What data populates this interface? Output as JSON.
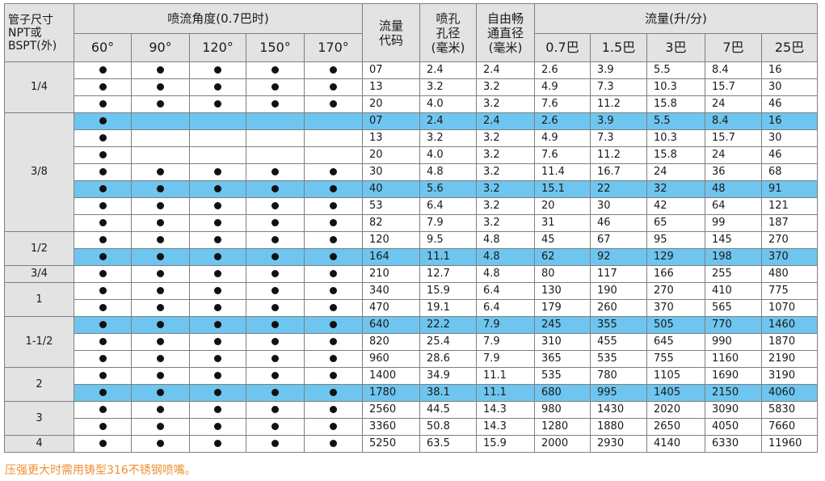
{
  "header": {
    "pipe_size": [
      "管子尺寸",
      "NPT或",
      "BSPT(外)"
    ],
    "spray_angle_title": "喷流角度(0.7巴时)",
    "angles": [
      "60°",
      "90°",
      "120°",
      "150°",
      "170°"
    ],
    "flow_code": [
      "流量",
      "代码"
    ],
    "orifice": [
      "喷孔",
      "孔径",
      "(毫米)"
    ],
    "free_passage": [
      "自由畅",
      "通直径",
      "(毫米)"
    ],
    "flow_title": "流量(升/分)",
    "pressures": [
      "0.7巴",
      "1.5巴",
      "3巴",
      "7巴",
      "25巴"
    ]
  },
  "dot_symbol": "●",
  "highlight_color": "#6ec5ef",
  "note_color": "#f08f33",
  "groups": [
    {
      "size": "1/4",
      "rows": [
        {
          "angles": [
            1,
            1,
            1,
            1,
            1
          ],
          "code": "07",
          "orifice": "2.4",
          "passage": "2.4",
          "flows": [
            "2.6",
            "3.9",
            "5.5",
            "8.4",
            "16"
          ],
          "hl": false
        },
        {
          "angles": [
            1,
            1,
            1,
            1,
            1
          ],
          "code": "13",
          "orifice": "3.2",
          "passage": "3.2",
          "flows": [
            "4.9",
            "7.3",
            "10.3",
            "15.7",
            "30"
          ],
          "hl": false
        },
        {
          "angles": [
            1,
            1,
            1,
            1,
            1
          ],
          "code": "20",
          "orifice": "4.0",
          "passage": "3.2",
          "flows": [
            "7.6",
            "11.2",
            "15.8",
            "24",
            "46"
          ],
          "hl": false
        }
      ]
    },
    {
      "size": "3/8",
      "rows": [
        {
          "angles": [
            1,
            0,
            0,
            0,
            0
          ],
          "code": "07",
          "orifice": "2.4",
          "passage": "2.4",
          "flows": [
            "2.6",
            "3.9",
            "5.5",
            "8.4",
            "16"
          ],
          "hl": true
        },
        {
          "angles": [
            1,
            0,
            0,
            0,
            0
          ],
          "code": "13",
          "orifice": "3.2",
          "passage": "3.2",
          "flows": [
            "4.9",
            "7.3",
            "10.3",
            "15.7",
            "30"
          ],
          "hl": false
        },
        {
          "angles": [
            1,
            0,
            0,
            0,
            0
          ],
          "code": "20",
          "orifice": "4.0",
          "passage": "3.2",
          "flows": [
            "7.6",
            "11.2",
            "15.8",
            "24",
            "46"
          ],
          "hl": false
        },
        {
          "angles": [
            1,
            1,
            1,
            1,
            1
          ],
          "code": "30",
          "orifice": "4.8",
          "passage": "3.2",
          "flows": [
            "11.4",
            "16.7",
            "24",
            "36",
            "68"
          ],
          "hl": false
        },
        {
          "angles": [
            1,
            1,
            1,
            1,
            1
          ],
          "code": "40",
          "orifice": "5.6",
          "passage": "3.2",
          "flows": [
            "15.1",
            "22",
            "32",
            "48",
            "91"
          ],
          "hl": true
        },
        {
          "angles": [
            1,
            1,
            1,
            1,
            1
          ],
          "code": "53",
          "orifice": "6.4",
          "passage": "3.2",
          "flows": [
            "20",
            "30",
            "42",
            "64",
            "121"
          ],
          "hl": false
        },
        {
          "angles": [
            1,
            1,
            1,
            1,
            1
          ],
          "code": "82",
          "orifice": "7.9",
          "passage": "3.2",
          "flows": [
            "31",
            "46",
            "65",
            "99",
            "187"
          ],
          "hl": false
        }
      ]
    },
    {
      "size": "1/2",
      "rows": [
        {
          "angles": [
            1,
            1,
            1,
            1,
            1
          ],
          "code": "120",
          "orifice": "9.5",
          "passage": "4.8",
          "flows": [
            "45",
            "67",
            "95",
            "145",
            "270"
          ],
          "hl": false
        },
        {
          "angles": [
            1,
            1,
            1,
            1,
            1
          ],
          "code": "164",
          "orifice": "11.1",
          "passage": "4.8",
          "flows": [
            "62",
            "92",
            "129",
            "198",
            "370"
          ],
          "hl": true
        }
      ]
    },
    {
      "size": "3/4",
      "rows": [
        {
          "angles": [
            1,
            1,
            1,
            1,
            1
          ],
          "code": "210",
          "orifice": "12.7",
          "passage": "4.8",
          "flows": [
            "80",
            "117",
            "166",
            "255",
            "480"
          ],
          "hl": false
        }
      ]
    },
    {
      "size": "1",
      "rows": [
        {
          "angles": [
            1,
            1,
            1,
            1,
            1
          ],
          "code": "340",
          "orifice": "15.9",
          "passage": "6.4",
          "flows": [
            "130",
            "190",
            "270",
            "410",
            "775"
          ],
          "hl": false
        },
        {
          "angles": [
            1,
            1,
            1,
            1,
            1
          ],
          "code": "470",
          "orifice": "19.1",
          "passage": "6.4",
          "flows": [
            "179",
            "260",
            "370",
            "565",
            "1070"
          ],
          "hl": false
        }
      ]
    },
    {
      "size": "1-1/2",
      "rows": [
        {
          "angles": [
            1,
            1,
            1,
            1,
            1
          ],
          "code": "640",
          "orifice": "22.2",
          "passage": "7.9",
          "flows": [
            "245",
            "355",
            "505",
            "770",
            "1460"
          ],
          "hl": true
        },
        {
          "angles": [
            1,
            1,
            1,
            1,
            1
          ],
          "code": "820",
          "orifice": "25.4",
          "passage": "7.9",
          "flows": [
            "310",
            "455",
            "645",
            "990",
            "1870"
          ],
          "hl": false
        },
        {
          "angles": [
            1,
            1,
            1,
            1,
            1
          ],
          "code": "960",
          "orifice": "28.6",
          "passage": "7.9",
          "flows": [
            "365",
            "535",
            "755",
            "1160",
            "2190"
          ],
          "hl": false
        }
      ]
    },
    {
      "size": "2",
      "rows": [
        {
          "angles": [
            1,
            1,
            1,
            1,
            1
          ],
          "code": "1400",
          "orifice": "34.9",
          "passage": "11.1",
          "flows": [
            "535",
            "780",
            "1105",
            "1690",
            "3190"
          ],
          "hl": false
        },
        {
          "angles": [
            1,
            1,
            1,
            1,
            1
          ],
          "code": "1780",
          "orifice": "38.1",
          "passage": "11.1",
          "flows": [
            "680",
            "995",
            "1405",
            "2150",
            "4060"
          ],
          "hl": true
        }
      ]
    },
    {
      "size": "3",
      "rows": [
        {
          "angles": [
            1,
            1,
            1,
            1,
            1
          ],
          "code": "2560",
          "orifice": "44.5",
          "passage": "14.3",
          "flows": [
            "980",
            "1430",
            "2020",
            "3090",
            "5830"
          ],
          "hl": false
        },
        {
          "angles": [
            1,
            1,
            1,
            1,
            1
          ],
          "code": "3360",
          "orifice": "50.8",
          "passage": "14.3",
          "flows": [
            "1280",
            "1880",
            "2650",
            "4050",
            "7660"
          ],
          "hl": false
        }
      ]
    },
    {
      "size": "4",
      "rows": [
        {
          "angles": [
            1,
            1,
            1,
            1,
            1
          ],
          "code": "5250",
          "orifice": "63.5",
          "passage": "15.9",
          "flows": [
            "2000",
            "2930",
            "4140",
            "6330",
            "11960"
          ],
          "hl": false
        }
      ]
    }
  ],
  "note": "压强更大时需用铸型316不锈钢喷嘴。"
}
